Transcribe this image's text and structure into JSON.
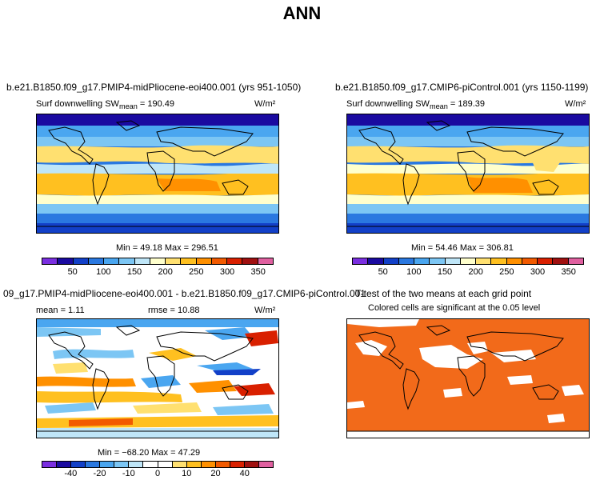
{
  "title": "ANN",
  "colors": {
    "sw_palette": [
      "#7a2ee0",
      "#1a0aa0",
      "#1240c8",
      "#2a78e0",
      "#4aa6f0",
      "#7cc6f4",
      "#bfe6f8",
      "#ffffcc",
      "#ffe070",
      "#ffc020",
      "#ff9000",
      "#f25a00",
      "#d92000",
      "#a01010",
      "#e060a0"
    ],
    "diff_palette": [
      "#7a2ee0",
      "#1a0aa0",
      "#1240c8",
      "#2a78e0",
      "#4aa6f0",
      "#7cc6f4",
      "#bfe6f8",
      "#ffffff",
      "#ffffff",
      "#ffe070",
      "#ffc020",
      "#ff9000",
      "#f25a00",
      "#d92000",
      "#a01010",
      "#e060a0"
    ],
    "significance": "#f26a1a"
  },
  "panels": [
    {
      "title": "b.e21.B1850.f09_g17.PMIP4-midPliocene-eoi400.001 (yrs 951-1050)",
      "variable": "Surf downwelling SW",
      "mean_label": "mean",
      "mean_value": "= 190.49",
      "units": "W/m²",
      "min": "49.18",
      "max": "296.51",
      "minmax_text": "Min =  49.18 Max = 296.51",
      "colorbar_ticks": [
        "50",
        "100",
        "150",
        "200",
        "250",
        "300",
        "350"
      ]
    },
    {
      "title": "b.e21.B1850.f09_g17.CMIP6-piControl.001 (yrs 1150-1199)",
      "variable": "Surf downwelling SW",
      "mean_label": "mean",
      "mean_value": "= 189.39",
      "units": "W/m²",
      "min": "54.46",
      "max": "306.81",
      "minmax_text": "Min =  54.46 Max = 306.81",
      "colorbar_ticks": [
        "50",
        "100",
        "150",
        "200",
        "250",
        "300",
        "350"
      ]
    },
    {
      "title": "09_g17.PMIP4-midPliocene-eoi400.001 - b.e21.B1850.f09_g17.CMIP6-piControl.001",
      "mean_text": "mean =   1.11",
      "rmse_text": "rmse =  10.88",
      "units": "W/m²",
      "min": "-68.20",
      "max": "47.29",
      "minmax_text": "Min = −68.20 Max =  47.29",
      "colorbar_ticks": [
        "-40",
        "-20",
        "-10",
        "0",
        "10",
        "20",
        "40"
      ]
    },
    {
      "title": "T-test of the two means at each grid point",
      "subtitle": "Colored cells are significant at the 0.05 level"
    }
  ]
}
